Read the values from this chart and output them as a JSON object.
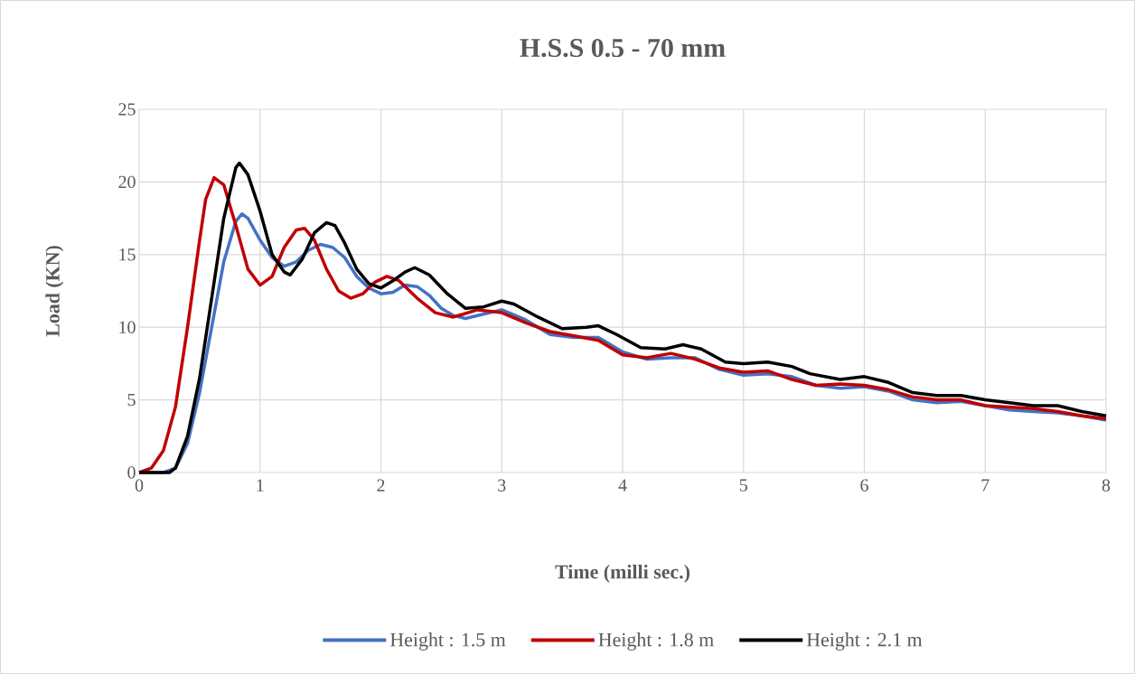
{
  "chart_data": {
    "type": "line",
    "title": "H.S.S 0.5 - 70 mm",
    "xlabel": "Time (milli sec.)",
    "ylabel": "Load (KN)",
    "xlim": [
      0,
      8
    ],
    "xticks": [
      0,
      1,
      2,
      3,
      4,
      5,
      6,
      7,
      8
    ],
    "ylim": [
      0,
      25
    ],
    "yticks": [
      0,
      5,
      10,
      15,
      20,
      25
    ],
    "grid": true,
    "legend": "bottom",
    "marker": "none",
    "line_style": "solid",
    "series": [
      {
        "name": "Height : 1.5 m",
        "color": "#4472c4",
        "x": [
          0,
          0.2,
          0.3,
          0.4,
          0.5,
          0.6,
          0.7,
          0.8,
          0.85,
          0.9,
          1.0,
          1.1,
          1.2,
          1.3,
          1.4,
          1.5,
          1.6,
          1.7,
          1.8,
          1.9,
          2.0,
          2.1,
          2.2,
          2.3,
          2.4,
          2.5,
          2.6,
          2.7,
          2.8,
          3.0,
          3.2,
          3.4,
          3.6,
          3.8,
          4.0,
          4.2,
          4.4,
          4.6,
          4.8,
          5.0,
          5.2,
          5.4,
          5.6,
          5.8,
          6.0,
          6.2,
          6.4,
          6.6,
          6.8,
          7.0,
          7.2,
          7.4,
          7.6,
          7.8,
          8.0
        ],
        "values": [
          0,
          0,
          0.3,
          2,
          5.5,
          10,
          14.5,
          17.3,
          17.8,
          17.5,
          16,
          14.8,
          14.2,
          14.5,
          15.3,
          15.7,
          15.5,
          14.8,
          13.5,
          12.7,
          12.3,
          12.4,
          12.9,
          12.8,
          12.2,
          11.3,
          10.8,
          10.6,
          10.8,
          11.2,
          10.5,
          9.5,
          9.3,
          9.3,
          8.3,
          7.8,
          7.9,
          7.9,
          7.1,
          6.7,
          6.8,
          6.6,
          6.0,
          5.8,
          5.9,
          5.6,
          5.0,
          4.8,
          4.9,
          4.6,
          4.3,
          4.2,
          4.1,
          3.9,
          3.6
        ]
      },
      {
        "name": "Height : 1.8 m",
        "color": "#c00000",
        "x": [
          0,
          0.1,
          0.2,
          0.3,
          0.4,
          0.5,
          0.55,
          0.62,
          0.7,
          0.8,
          0.9,
          1.0,
          1.1,
          1.2,
          1.3,
          1.37,
          1.45,
          1.55,
          1.65,
          1.75,
          1.85,
          1.95,
          2.05,
          2.15,
          2.3,
          2.45,
          2.6,
          2.8,
          3.0,
          3.2,
          3.4,
          3.6,
          3.8,
          4.0,
          4.2,
          4.4,
          4.6,
          4.8,
          5.0,
          5.2,
          5.4,
          5.6,
          5.8,
          6.0,
          6.2,
          6.4,
          6.6,
          6.8,
          7.0,
          7.2,
          7.4,
          7.6,
          7.8,
          8.0
        ],
        "values": [
          0,
          0.3,
          1.5,
          4.5,
          10,
          16,
          18.8,
          20.3,
          19.8,
          17,
          14,
          12.9,
          13.5,
          15.5,
          16.7,
          16.8,
          16,
          14,
          12.5,
          12.0,
          12.3,
          13.1,
          13.5,
          13.2,
          12,
          11,
          10.7,
          11.2,
          11.0,
          10.3,
          9.7,
          9.4,
          9.1,
          8.1,
          7.9,
          8.2,
          7.8,
          7.2,
          6.9,
          7.0,
          6.4,
          6.0,
          6.1,
          6.0,
          5.7,
          5.2,
          5.0,
          5.0,
          4.6,
          4.5,
          4.4,
          4.2,
          3.9,
          3.7
        ]
      },
      {
        "name": "Height : 2.1 m",
        "color": "#000000",
        "x": [
          0,
          0.25,
          0.3,
          0.4,
          0.5,
          0.6,
          0.7,
          0.8,
          0.83,
          0.9,
          1.0,
          1.1,
          1.2,
          1.25,
          1.35,
          1.45,
          1.55,
          1.62,
          1.7,
          1.8,
          1.9,
          2.0,
          2.1,
          2.2,
          2.28,
          2.4,
          2.55,
          2.7,
          2.85,
          3.0,
          3.1,
          3.3,
          3.5,
          3.7,
          3.8,
          3.95,
          4.15,
          4.35,
          4.5,
          4.65,
          4.85,
          5.0,
          5.2,
          5.4,
          5.55,
          5.8,
          6.0,
          6.2,
          6.4,
          6.6,
          6.8,
          7.0,
          7.2,
          7.4,
          7.6,
          7.8,
          8.0
        ],
        "values": [
          0,
          0,
          0.3,
          2.5,
          6.5,
          12,
          17.5,
          21,
          21.3,
          20.5,
          18,
          15,
          13.8,
          13.6,
          14.7,
          16.5,
          17.2,
          17,
          15.8,
          14,
          13,
          12.7,
          13.2,
          13.8,
          14.1,
          13.6,
          12.3,
          11.3,
          11.4,
          11.8,
          11.6,
          10.7,
          9.9,
          10,
          10.1,
          9.5,
          8.6,
          8.5,
          8.8,
          8.5,
          7.6,
          7.5,
          7.6,
          7.3,
          6.8,
          6.4,
          6.6,
          6.2,
          5.5,
          5.3,
          5.3,
          5.0,
          4.8,
          4.6,
          4.6,
          4.2,
          3.9
        ]
      }
    ]
  }
}
